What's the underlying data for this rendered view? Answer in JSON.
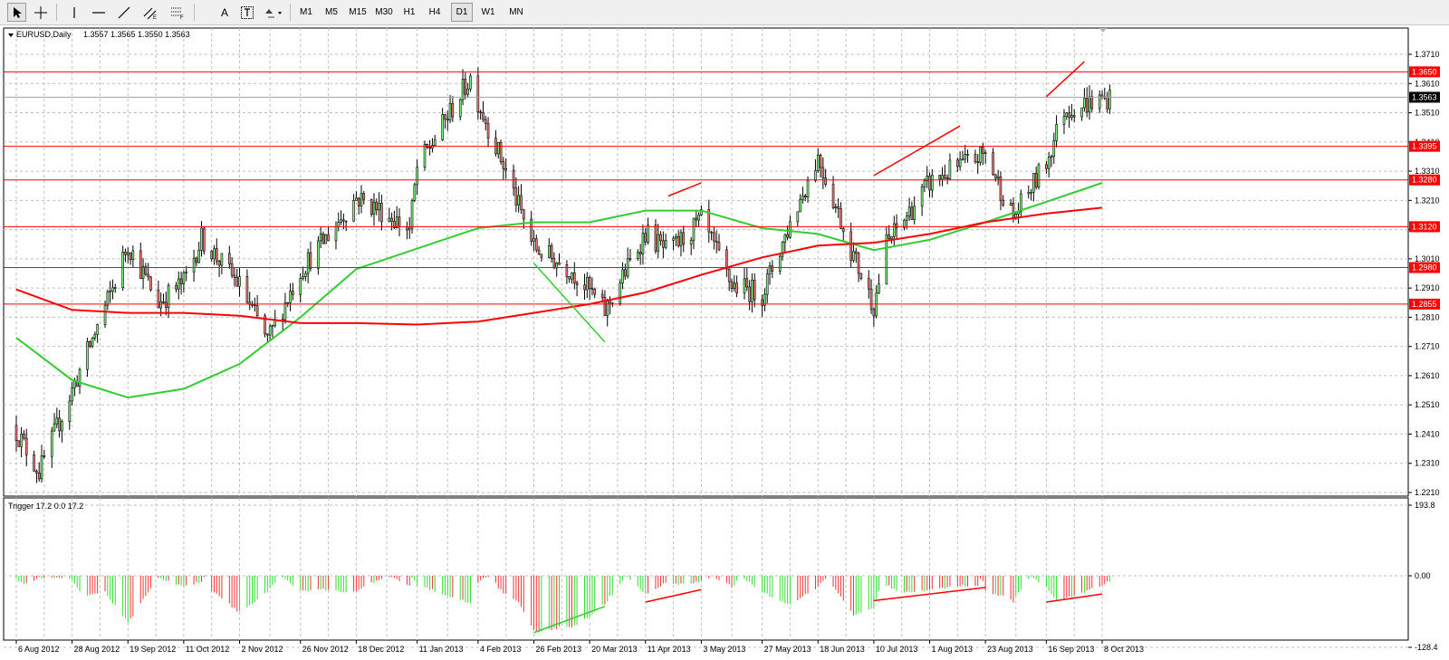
{
  "toolbar": {
    "timeframes": [
      "M1",
      "M5",
      "M15",
      "M30",
      "H1",
      "H4",
      "D1",
      "W1",
      "MN"
    ],
    "active_timeframe": "D1",
    "text_tool_label": "A"
  },
  "main_header": {
    "symbol_label": "EURUSD,Daily",
    "ohlc": "1.3557 1.3565 1.3550 1.3563"
  },
  "indicator_header": "Trigger 17.2 0.0 17.2",
  "price_axis_ticks": [
    "1.3710",
    "1.3610",
    "1.3510",
    "1.3410",
    "1.3310",
    "1.3210",
    "1.3110",
    "1.3010",
    "1.2910",
    "1.2810",
    "1.2710",
    "1.2610",
    "1.2510",
    "1.2410",
    "1.2310",
    "1.2210"
  ],
  "indicator_axis_ticks": [
    "193.8",
    "0.00",
    "-128.4"
  ],
  "date_ticks": [
    "6 Aug 2012",
    "28 Aug 2012",
    "19 Sep 2012",
    "11 Oct 2012",
    "2 Nov 2012",
    "26 Nov 2012",
    "18 Dec 2012",
    "11 Jan 2013",
    "4 Feb 2013",
    "26 Feb 2013",
    "20 Mar 2013",
    "11 Apr 2013",
    "3 May 2013",
    "27 May 2013",
    "18 Jun 2013",
    "10 Jul 2013",
    "1 Aug 2013",
    "23 Aug 2013",
    "16 Sep 2013",
    "8 Oct 2013"
  ],
  "colors": {
    "bull": "#7fff7f",
    "bear": "#ff7f7f",
    "candle_border": "#000000",
    "level_line": "#ff0000",
    "ma_fast": "#32cd32",
    "ma_slow": "#ff0000",
    "grid": "#c0c0c0"
  },
  "chart_data": {
    "type": "candlestick",
    "symbol": "EURUSD",
    "timeframe": "Daily",
    "last_price": "1.3563",
    "price_range": [
      1.218,
      1.3765
    ],
    "horizontal_levels": [
      {
        "price": 1.365,
        "label": "1.3650"
      },
      {
        "price": 1.3395,
        "label": "1.3395"
      },
      {
        "price": 1.328,
        "label": "1.3280"
      },
      {
        "price": 1.312,
        "label": "1.3120"
      },
      {
        "price": 1.298,
        "label": "1.2980"
      },
      {
        "price": 1.2855,
        "label": "1.2855"
      }
    ],
    "price_path": [
      [
        "6 Aug 2012",
        1.242
      ],
      [
        "15 Aug 2012",
        1.228
      ],
      [
        "28 Aug 2012",
        1.256
      ],
      [
        "13 Sep 2012",
        1.291
      ],
      [
        "19 Sep 2012",
        1.306
      ],
      [
        "1 Oct 2012",
        1.286
      ],
      [
        "11 Oct 2012",
        1.293
      ],
      [
        "18 Oct 2012",
        1.308
      ],
      [
        "2 Nov 2012",
        1.292
      ],
      [
        "13 Nov 2012",
        1.273
      ],
      [
        "26 Nov 2012",
        1.297
      ],
      [
        "5 Dec 2012",
        1.307
      ],
      [
        "18 Dec 2012",
        1.322
      ],
      [
        "27 Dec 2012",
        1.318
      ],
      [
        "8 Jan 2013",
        1.311
      ],
      [
        "11 Jan 2013",
        1.332
      ],
      [
        "1 Feb 2013",
        1.363
      ],
      [
        "4 Feb 2013",
        1.355
      ],
      [
        "14 Feb 2013",
        1.333
      ],
      [
        "26 Feb 2013",
        1.305
      ],
      [
        "13 Mar 2013",
        1.297
      ],
      [
        "20 Mar 2013",
        1.29
      ],
      [
        "26 Mar 2013",
        1.283
      ],
      [
        "11 Apr 2013",
        1.31
      ],
      [
        "20 Apr 2013",
        1.303
      ],
      [
        "3 May 2013",
        1.314
      ],
      [
        "15 May 2013",
        1.292
      ],
      [
        "27 May 2013",
        1.289
      ],
      [
        "7 Jun 2013",
        1.313
      ],
      [
        "18 Jun 2013",
        1.336
      ],
      [
        "2 Jul 2013",
        1.302
      ],
      [
        "10 Jul 2013",
        1.285
      ],
      [
        "15 Jul 2013",
        1.306
      ],
      [
        "1 Aug 2013",
        1.327
      ],
      [
        "9 Aug 2013",
        1.331
      ],
      [
        "23 Aug 2013",
        1.337
      ],
      [
        "3 Sep 2013",
        1.315
      ],
      [
        "16 Sep 2013",
        1.334
      ],
      [
        "23 Sep 2013",
        1.352
      ],
      [
        "8 Oct 2013",
        1.3555
      ],
      [
        "11 Oct 2013",
        1.3563
      ]
    ],
    "moving_averages": [
      {
        "color": "green",
        "path": [
          [
            "6 Aug 2012",
            1.274
          ],
          [
            "28 Aug 2012",
            1.2595
          ],
          [
            "19 Sep 2012",
            1.2535
          ],
          [
            "11 Oct 2012",
            1.2565
          ],
          [
            "2 Nov 2012",
            1.265
          ],
          [
            "26 Nov 2012",
            1.281
          ],
          [
            "18 Dec 2012",
            1.2975
          ],
          [
            "11 Jan 2013",
            1.3045
          ],
          [
            "4 Feb 2013",
            1.3115
          ],
          [
            "26 Feb 2013",
            1.3135
          ],
          [
            "20 Mar 2013",
            1.3135
          ],
          [
            "11 Apr 2013",
            1.3175
          ],
          [
            "3 May 2013",
            1.3175
          ],
          [
            "27 May 2013",
            1.3115
          ],
          [
            "18 Jun 2013",
            1.3095
          ],
          [
            "10 Jul 2013",
            1.304
          ],
          [
            "1 Aug 2013",
            1.3075
          ],
          [
            "23 Aug 2013",
            1.3135
          ],
          [
            "16 Sep 2013",
            1.3205
          ],
          [
            "8 Oct 2013",
            1.327
          ]
        ]
      },
      {
        "color": "red",
        "path": [
          [
            "6 Aug 2012",
            1.2905
          ],
          [
            "28 Aug 2012",
            1.2835
          ],
          [
            "19 Sep 2012",
            1.2825
          ],
          [
            "11 Oct 2012",
            1.2825
          ],
          [
            "2 Nov 2012",
            1.2815
          ],
          [
            "26 Nov 2012",
            1.279
          ],
          [
            "18 Dec 2012",
            1.279
          ],
          [
            "11 Jan 2013",
            1.2785
          ],
          [
            "4 Feb 2013",
            1.2795
          ],
          [
            "26 Feb 2013",
            1.2825
          ],
          [
            "20 Mar 2013",
            1.2855
          ],
          [
            "11 Apr 2013",
            1.2895
          ],
          [
            "3 May 2013",
            1.2955
          ],
          [
            "27 May 2013",
            1.3015
          ],
          [
            "18 Jun 2013",
            1.3055
          ],
          [
            "10 Jul 2013",
            1.3065
          ],
          [
            "1 Aug 2013",
            1.3095
          ],
          [
            "23 Aug 2013",
            1.3135
          ],
          [
            "16 Sep 2013",
            1.3165
          ],
          [
            "8 Oct 2013",
            1.3185
          ]
        ]
      }
    ],
    "trend_lines_price": [
      {
        "color": "red",
        "from": [
          "20 Apr 2013",
          1.3225
        ],
        "to": [
          "3 May 2013",
          1.327
        ]
      },
      {
        "color": "green",
        "from": [
          "26 Feb 2013",
          1.2995
        ],
        "to": [
          "26 Mar 2013",
          1.2725
        ]
      },
      {
        "color": "red",
        "from": [
          "10 Jul 2013",
          1.3295
        ],
        "to": [
          "13 Aug 2013",
          1.3465
        ]
      },
      {
        "color": "red",
        "from": [
          "16 Sep 2013",
          1.3565
        ],
        "to": [
          "1 Oct 2013",
          1.3685
        ]
      }
    ],
    "indicator": {
      "name": "Trigger",
      "values_header": "17.2 0.0 17.2",
      "range": [
        -128.4,
        193.8
      ],
      "histogram_path": [
        [
          "6 Aug 2012",
          10
        ],
        [
          "10 Aug 2012",
          22
        ],
        [
          "15 Aug 2012",
          5
        ],
        [
          "28 Aug 2012",
          8
        ],
        [
          "1 Sep 2012",
          55
        ],
        [
          "10 Sep 2012",
          45
        ],
        [
          "19 Sep 2012",
          130
        ],
        [
          "26 Sep 2012",
          55
        ],
        [
          "1 Oct 2012",
          5
        ],
        [
          "11 Oct 2012",
          30
        ],
        [
          "18 Oct 2012",
          15
        ],
        [
          "22 Oct 2012",
          -25
        ],
        [
          "2 Nov 2012",
          -65
        ],
        [
          "7 Nov 2012",
          -50
        ],
        [
          "13 Nov 2012",
          -30
        ],
        [
          "26 Nov 2012",
          40
        ],
        [
          "5 Dec 2012",
          38
        ],
        [
          "18 Dec 2012",
          45
        ],
        [
          "22 Dec 2012",
          25
        ],
        [
          "8 Jan 2013",
          -20
        ],
        [
          "11 Jan 2013",
          25
        ],
        [
          "1 Feb 2013",
          75
        ],
        [
          "4 Feb 2013",
          20
        ],
        [
          "14 Feb 2013",
          -30
        ],
        [
          "20 Feb 2013",
          -50
        ],
        [
          "26 Feb 2013",
          -100
        ],
        [
          "13 Mar 2013",
          -90
        ],
        [
          "20 Mar 2013",
          -75
        ],
        [
          "26 Mar 2013",
          -50
        ],
        [
          "11 Apr 2013",
          50
        ],
        [
          "20 Apr 2013",
          15
        ],
        [
          "24 Apr 2013",
          25
        ],
        [
          "3 May 2013",
          15
        ],
        [
          "9 May 2013",
          -5
        ],
        [
          "15 May 2013",
          -20
        ],
        [
          "27 May 2013",
          45
        ],
        [
          "7 Jun 2013",
          80
        ],
        [
          "18 Jun 2013",
          30
        ],
        [
          "24 Jun 2013",
          -20
        ],
        [
          "2 Jul 2013",
          -70
        ],
        [
          "10 Jul 2013",
          -60
        ],
        [
          "15 Jul 2013",
          25
        ],
        [
          "20 Jul 2013",
          45
        ],
        [
          "1 Aug 2013",
          40
        ],
        [
          "9 Aug 2013",
          30
        ],
        [
          "20 Aug 2013",
          25
        ],
        [
          "23 Aug 2013",
          -25
        ],
        [
          "3 Sep 2013",
          -45
        ],
        [
          "9 Sep 2013",
          -5
        ],
        [
          "16 Sep 2013",
          30
        ],
        [
          "20 Sep 2013",
          70
        ],
        [
          "1 Oct 2013",
          45
        ],
        [
          "11 Oct 2013",
          15
        ]
      ],
      "trend_lines": [
        {
          "color": "red",
          "from": [
            "11 Apr 2013",
            72
          ],
          "to": [
            "3 May 2013",
            38
          ]
        },
        {
          "color": "green",
          "from": [
            "26 Feb 2013",
            -102
          ],
          "to": [
            "26 Mar 2013",
            -55
          ]
        },
        {
          "color": "red",
          "from": [
            "10 Jul 2013",
            68
          ],
          "to": [
            "23 Aug 2013",
            32
          ]
        },
        {
          "color": "red",
          "from": [
            "16 Sep 2013",
            72
          ],
          "to": [
            "8 Oct 2013",
            50
          ]
        }
      ]
    }
  }
}
